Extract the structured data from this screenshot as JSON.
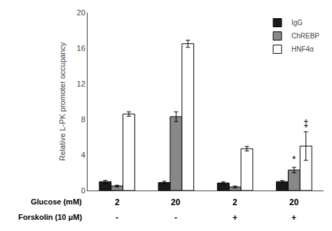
{
  "chart_data": {
    "type": "bar",
    "categories": [
      [
        "2",
        "-"
      ],
      [
        "20",
        "-"
      ],
      [
        "2",
        "+"
      ],
      [
        "20",
        "+"
      ]
    ],
    "category_titles": [
      "Glucose (mM)",
      "Forskolin (10 μM)"
    ],
    "series": [
      {
        "name": "IgG",
        "color": "#1a1a1a",
        "values": [
          1.0,
          0.9,
          0.85,
          1.0
        ],
        "errors": [
          0.15,
          0.15,
          0.12,
          0.12
        ]
      },
      {
        "name": "ChREBP",
        "color": "#888888",
        "values": [
          0.5,
          8.3,
          0.4,
          2.3
        ],
        "errors": [
          0.1,
          0.55,
          0.1,
          0.3
        ]
      },
      {
        "name": "HNF4α",
        "color": "#ffffff",
        "values": [
          8.6,
          16.5,
          4.7,
          5.0
        ],
        "errors": [
          0.25,
          0.4,
          0.25,
          1.6
        ]
      }
    ],
    "ylabel": "Relative L-PK promoter occupancy",
    "ylim": [
      0,
      20
    ],
    "yticks": [
      0,
      4,
      8,
      12,
      16,
      20
    ],
    "grid": false,
    "legend": "upper right",
    "tick_labels": "y",
    "annotations": [
      {
        "text": "*",
        "category": 3,
        "series": "ChREBP"
      },
      {
        "text": "‡",
        "category": 3,
        "series": "HNF4α"
      }
    ]
  }
}
